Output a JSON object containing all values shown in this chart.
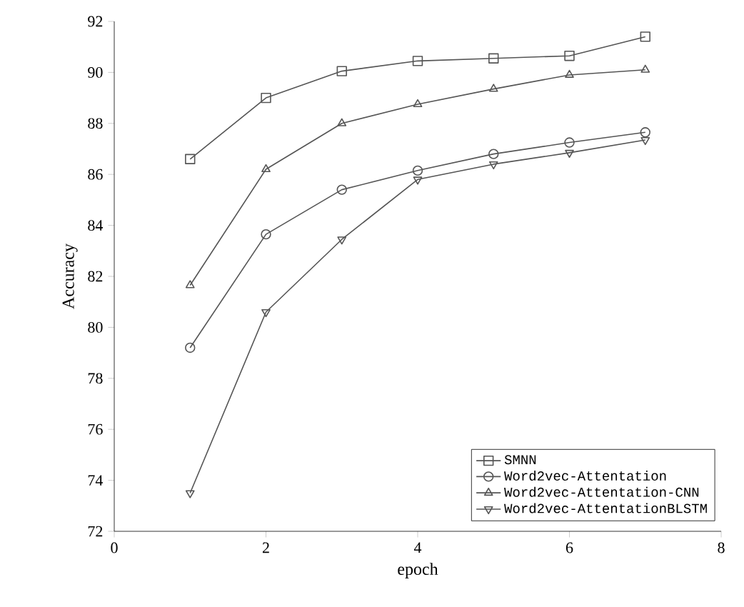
{
  "chart_data": {
    "type": "line",
    "xlabel": "epoch",
    "ylabel": "Accuracy",
    "x": [
      1,
      2,
      3,
      4,
      5,
      6,
      7
    ],
    "series": [
      {
        "name": "SMNN",
        "color": "#555555",
        "marker": "square",
        "values": [
          86.6,
          89.0,
          90.05,
          90.45,
          90.55,
          90.65,
          91.4
        ]
      },
      {
        "name": "Word2vec-Attentation",
        "color": "#555555",
        "marker": "circle",
        "values": [
          79.2,
          83.65,
          85.4,
          86.15,
          86.8,
          87.25,
          87.65
        ]
      },
      {
        "name": "Word2vec-Attentation-CNN",
        "color": "#555555",
        "marker": "triangle",
        "values": [
          81.65,
          86.2,
          88.0,
          88.75,
          89.35,
          89.9,
          90.1
        ]
      },
      {
        "name": "Word2vec-AttentationBLSTM",
        "color": "#555555",
        "marker": "triangle-down",
        "values": [
          73.5,
          80.6,
          83.45,
          85.8,
          86.4,
          86.85,
          87.35
        ]
      }
    ],
    "xlim": [
      0,
      8
    ],
    "xticks": [
      0,
      2,
      4,
      6,
      8
    ],
    "ylim": [
      72,
      92
    ],
    "yticks": [
      72,
      74,
      76,
      78,
      80,
      82,
      84,
      86,
      88,
      90,
      92
    ],
    "legend": "bottom right",
    "grid": false,
    "line_style": "solid"
  }
}
